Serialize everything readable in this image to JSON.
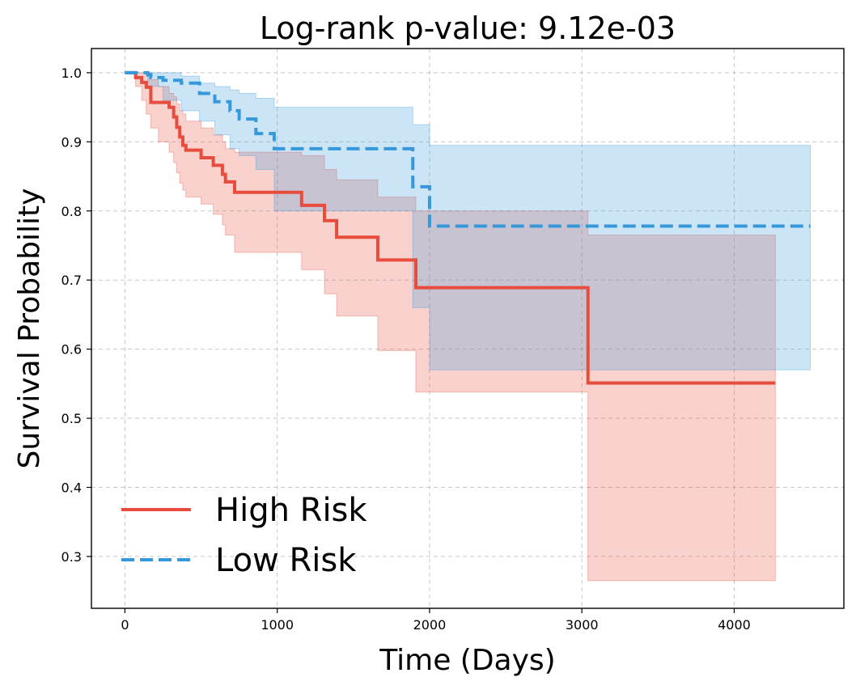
{
  "chart_data": {
    "type": "line",
    "title": "Log-rank p-value: 9.12e-03",
    "xlabel": "Time (Days)",
    "ylabel": "Survival Probability",
    "xlim": [
      -220,
      4720
    ],
    "ylim": [
      0.225,
      1.035
    ],
    "xticks": [
      0,
      1000,
      2000,
      3000,
      4000
    ],
    "xtick_labels": [
      "0",
      "1000",
      "2000",
      "3000",
      "4000"
    ],
    "yticks": [
      0.3,
      0.4,
      0.5,
      0.6,
      0.7,
      0.8,
      0.9,
      1.0
    ],
    "ytick_labels": [
      "0.3",
      "0.4",
      "0.5",
      "0.6",
      "0.7",
      "0.8",
      "0.9",
      "1.0"
    ],
    "grid": true,
    "legend_position": "lower-left",
    "series": [
      {
        "name": "High Risk",
        "color": "#e74c3c",
        "style": "solid",
        "x": [
          0,
          70,
          110,
          140,
          170,
          290,
          320,
          340,
          360,
          380,
          400,
          500,
          580,
          640,
          660,
          720,
          1160,
          1310,
          1390,
          1660,
          1910,
          3040,
          4270
        ],
        "y": [
          1.0,
          0.993,
          0.986,
          0.979,
          0.957,
          0.95,
          0.936,
          0.921,
          0.907,
          0.895,
          0.888,
          0.877,
          0.866,
          0.853,
          0.842,
          0.827,
          0.808,
          0.786,
          0.762,
          0.729,
          0.689,
          0.551,
          0.551
        ],
        "ci_x": [
          0,
          70,
          110,
          140,
          170,
          220,
          290,
          320,
          340,
          360,
          380,
          400,
          500,
          580,
          640,
          660,
          720,
          1160,
          1310,
          1390,
          1660,
          1910,
          3040,
          4270
        ],
        "ci_upper": [
          1.0,
          1.0,
          1.0,
          1.0,
          0.99,
          0.98,
          0.97,
          0.965,
          0.955,
          0.945,
          0.94,
          0.93,
          0.92,
          0.91,
          0.9,
          0.89,
          0.885,
          0.88,
          0.86,
          0.845,
          0.82,
          0.8,
          0.765,
          0.765
        ],
        "ci_lower": [
          1.0,
          0.98,
          0.96,
          0.94,
          0.92,
          0.9,
          0.885,
          0.87,
          0.855,
          0.84,
          0.83,
          0.82,
          0.81,
          0.795,
          0.78,
          0.765,
          0.74,
          0.715,
          0.68,
          0.648,
          0.598,
          0.538,
          0.265,
          0.265
        ]
      },
      {
        "name": "Low Risk",
        "color": "#3498db",
        "style": "dashed",
        "x": [
          0,
          150,
          170,
          250,
          370,
          490,
          590,
          690,
          750,
          860,
          980,
          1890,
          2000,
          4500
        ],
        "y": [
          1.0,
          0.997,
          0.993,
          0.989,
          0.985,
          0.97,
          0.958,
          0.945,
          0.933,
          0.912,
          0.89,
          0.835,
          0.778,
          0.778
        ],
        "ci_x": [
          0,
          150,
          250,
          370,
          490,
          590,
          690,
          750,
          860,
          980,
          1890,
          2000,
          4500
        ],
        "ci_upper": [
          1.0,
          1.0,
          1.0,
          0.995,
          0.985,
          0.98,
          0.975,
          0.97,
          0.963,
          0.95,
          0.925,
          0.895,
          0.895
        ],
        "ci_lower": [
          1.0,
          0.98,
          0.96,
          0.945,
          0.93,
          0.91,
          0.89,
          0.88,
          0.86,
          0.8,
          0.66,
          0.57,
          0.57
        ]
      }
    ]
  }
}
